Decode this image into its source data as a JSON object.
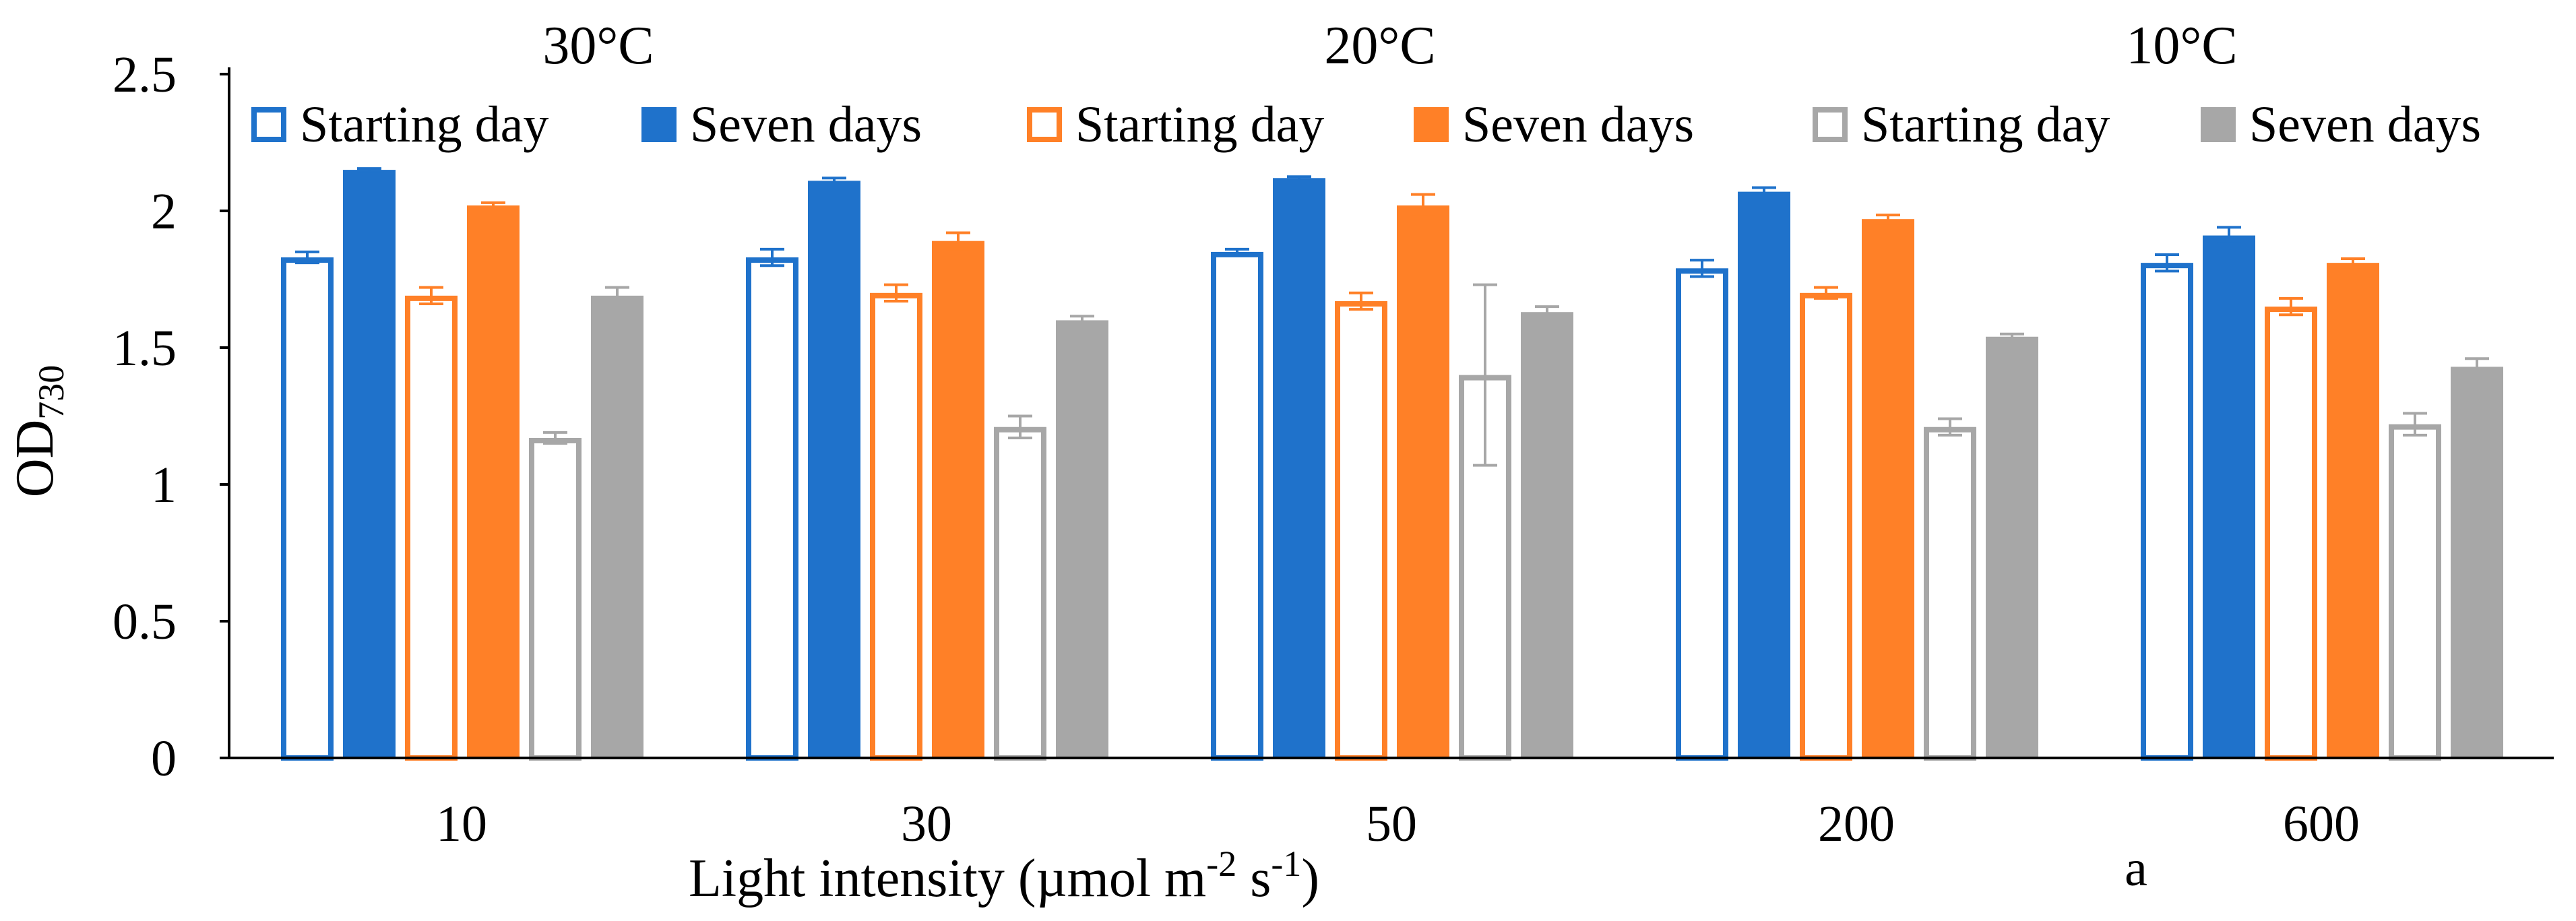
{
  "chart_data": {
    "type": "bar",
    "title": "",
    "panel_label": "a",
    "xlabel": {
      "main": "Light intensity (µmol m",
      "sup1": "-2",
      "mid": " s",
      "sup2": "-1",
      "end": ")"
    },
    "ylabel": {
      "main": "OD",
      "sub": "730"
    },
    "ylim": [
      0,
      2.5
    ],
    "yticks": [
      {
        "value": 0,
        "label": "0"
      },
      {
        "value": 0.5,
        "label": "0.5"
      },
      {
        "value": 1,
        "label": "1"
      },
      {
        "value": 1.5,
        "label": "1.5"
      },
      {
        "value": 2,
        "label": "2"
      },
      {
        "value": 2.5,
        "label": "2.5"
      }
    ],
    "grid": false,
    "legend_position": "top",
    "temperature_labels": [
      "30°C",
      "20°C",
      "10°C"
    ],
    "categories": [
      "10",
      "30",
      "50",
      "200",
      "600"
    ],
    "series": [
      {
        "name": "Starting day",
        "temperature": "30°C",
        "style": "outline",
        "color": "#1F72CB",
        "values": [
          1.83,
          1.83,
          1.85,
          1.79,
          1.81
        ],
        "errors": [
          0.02,
          0.03,
          0.01,
          0.03,
          0.03
        ]
      },
      {
        "name": "Seven days",
        "temperature": "30°C",
        "style": "filled",
        "color": "#1F72CB",
        "values": [
          2.15,
          2.11,
          2.12,
          2.07,
          1.91
        ],
        "errors": [
          0.005,
          0.01,
          0.005,
          0.015,
          0.03
        ]
      },
      {
        "name": "Starting day",
        "temperature": "20°C",
        "style": "outline",
        "color": "#FF8027",
        "values": [
          1.69,
          1.7,
          1.67,
          1.7,
          1.65
        ],
        "errors": [
          0.03,
          0.03,
          0.03,
          0.02,
          0.03
        ]
      },
      {
        "name": "Seven days",
        "temperature": "20°C",
        "style": "filled",
        "color": "#FF8027",
        "values": [
          2.02,
          1.89,
          2.02,
          1.97,
          1.81
        ],
        "errors": [
          0.01,
          0.03,
          0.04,
          0.015,
          0.015
        ]
      },
      {
        "name": "Starting day",
        "temperature": "10°C",
        "style": "outline",
        "color": "#A7A7A7",
        "values": [
          1.17,
          1.21,
          1.4,
          1.21,
          1.22
        ],
        "errors": [
          0.02,
          0.04,
          0.33,
          0.03,
          0.04
        ]
      },
      {
        "name": "Seven days",
        "temperature": "10°C",
        "style": "filled",
        "color": "#A7A7A7",
        "values": [
          1.69,
          1.6,
          1.63,
          1.54,
          1.43
        ],
        "errors": [
          0.03,
          0.015,
          0.02,
          0.01,
          0.03
        ]
      }
    ]
  }
}
